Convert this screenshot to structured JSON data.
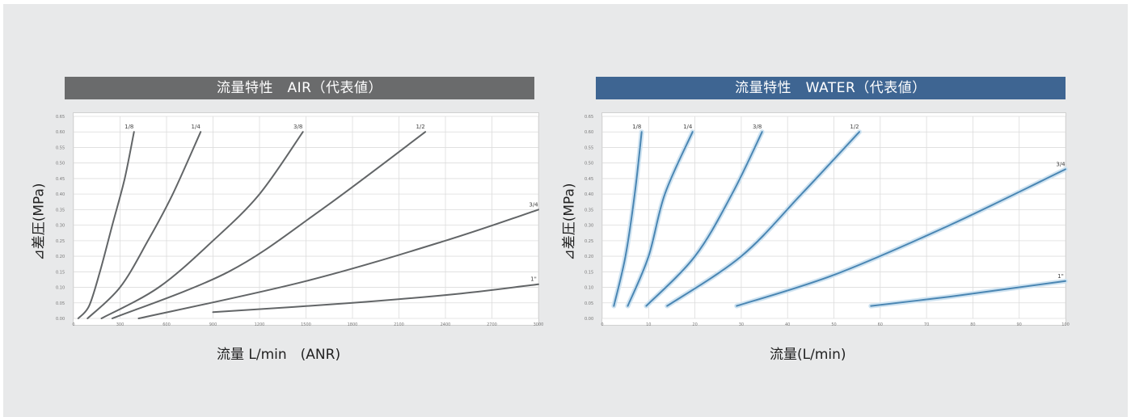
{
  "colors": {
    "background": "#e8e9ea",
    "air_title_bg": "#6a6b6c",
    "water_title_bg": "#3e6592",
    "air_curve": "#626567",
    "water_curve": "#4a86b3",
    "water_curve_halo": "#cfe3f1",
    "grid": "#dcdcdc"
  },
  "chart_data": [
    {
      "id": "air",
      "type": "line",
      "title": "流量特性　AIR（代表値）",
      "xlabel": "流量 L/min　(ANR)",
      "ylabel": "⊿差圧(MPa)",
      "xlim": [
        0,
        3000
      ],
      "ylim": [
        0,
        0.65
      ],
      "xticks": [
        0,
        300,
        600,
        900,
        1200,
        1500,
        1800,
        2100,
        2400,
        2700,
        3000
      ],
      "yticks": [
        0,
        0.05,
        0.1,
        0.15,
        0.2,
        0.25,
        0.3,
        0.35,
        0.4,
        0.45,
        0.5,
        0.55,
        0.6,
        0.65
      ],
      "grid": true,
      "series": [
        {
          "name": "1/8",
          "points": [
            [
              30,
              0.0
            ],
            [
              100,
              0.04
            ],
            [
              170,
              0.15
            ],
            [
              250,
              0.3
            ],
            [
              330,
              0.45
            ],
            [
              390,
              0.6
            ]
          ]
        },
        {
          "name": "1/4",
          "points": [
            [
              90,
              0.0
            ],
            [
              300,
              0.1
            ],
            [
              480,
              0.25
            ],
            [
              640,
              0.4
            ],
            [
              820,
              0.6
            ]
          ]
        },
        {
          "name": "3/8",
          "points": [
            [
              180,
              0.0
            ],
            [
              550,
              0.1
            ],
            [
              900,
              0.25
            ],
            [
              1200,
              0.4
            ],
            [
              1480,
              0.6
            ]
          ]
        },
        {
          "name": "1/2",
          "points": [
            [
              250,
              0.0
            ],
            [
              1000,
              0.15
            ],
            [
              1600,
              0.35
            ],
            [
              2270,
              0.6
            ]
          ]
        },
        {
          "name": "3/4",
          "points": [
            [
              420,
              0.0
            ],
            [
              1500,
              0.12
            ],
            [
              2400,
              0.25
            ],
            [
              3000,
              0.35
            ]
          ]
        },
        {
          "name": "1\"",
          "points": [
            [
              900,
              0.02
            ],
            [
              1800,
              0.05
            ],
            [
              2500,
              0.08
            ],
            [
              3000,
              0.11
            ]
          ]
        }
      ]
    },
    {
      "id": "water",
      "type": "line",
      "title": "流量特性　WATER（代表値）",
      "xlabel": "流量(L/min)",
      "ylabel": "⊿差圧(MPa)",
      "xlim": [
        0,
        100
      ],
      "ylim": [
        0,
        0.65
      ],
      "xticks": [
        0,
        10,
        20,
        30,
        40,
        50,
        60,
        70,
        80,
        90,
        100
      ],
      "yticks": [
        0,
        0.05,
        0.1,
        0.15,
        0.2,
        0.25,
        0.3,
        0.35,
        0.4,
        0.45,
        0.5,
        0.55,
        0.6,
        0.65
      ],
      "grid": true,
      "series": [
        {
          "name": "1/8",
          "points": [
            [
              2.5,
              0.04
            ],
            [
              5,
              0.2
            ],
            [
              7,
              0.4
            ],
            [
              8.5,
              0.6
            ]
          ]
        },
        {
          "name": "1/4",
          "points": [
            [
              5.5,
              0.04
            ],
            [
              10,
              0.2
            ],
            [
              13.5,
              0.4
            ],
            [
              19.5,
              0.6
            ]
          ]
        },
        {
          "name": "3/8",
          "points": [
            [
              9.5,
              0.04
            ],
            [
              20,
              0.2
            ],
            [
              28,
              0.4
            ],
            [
              34.5,
              0.6
            ]
          ]
        },
        {
          "name": "1/2",
          "points": [
            [
              14,
              0.04
            ],
            [
              30,
              0.2
            ],
            [
              43,
              0.4
            ],
            [
              55.5,
              0.6
            ]
          ]
        },
        {
          "name": "3/4",
          "points": [
            [
              29,
              0.04
            ],
            [
              50,
              0.14
            ],
            [
              75,
              0.3
            ],
            [
              100,
              0.48
            ]
          ]
        },
        {
          "name": "1\"",
          "points": [
            [
              58,
              0.04
            ],
            [
              75,
              0.07
            ],
            [
              90,
              0.1
            ],
            [
              100,
              0.12
            ]
          ]
        }
      ]
    }
  ]
}
